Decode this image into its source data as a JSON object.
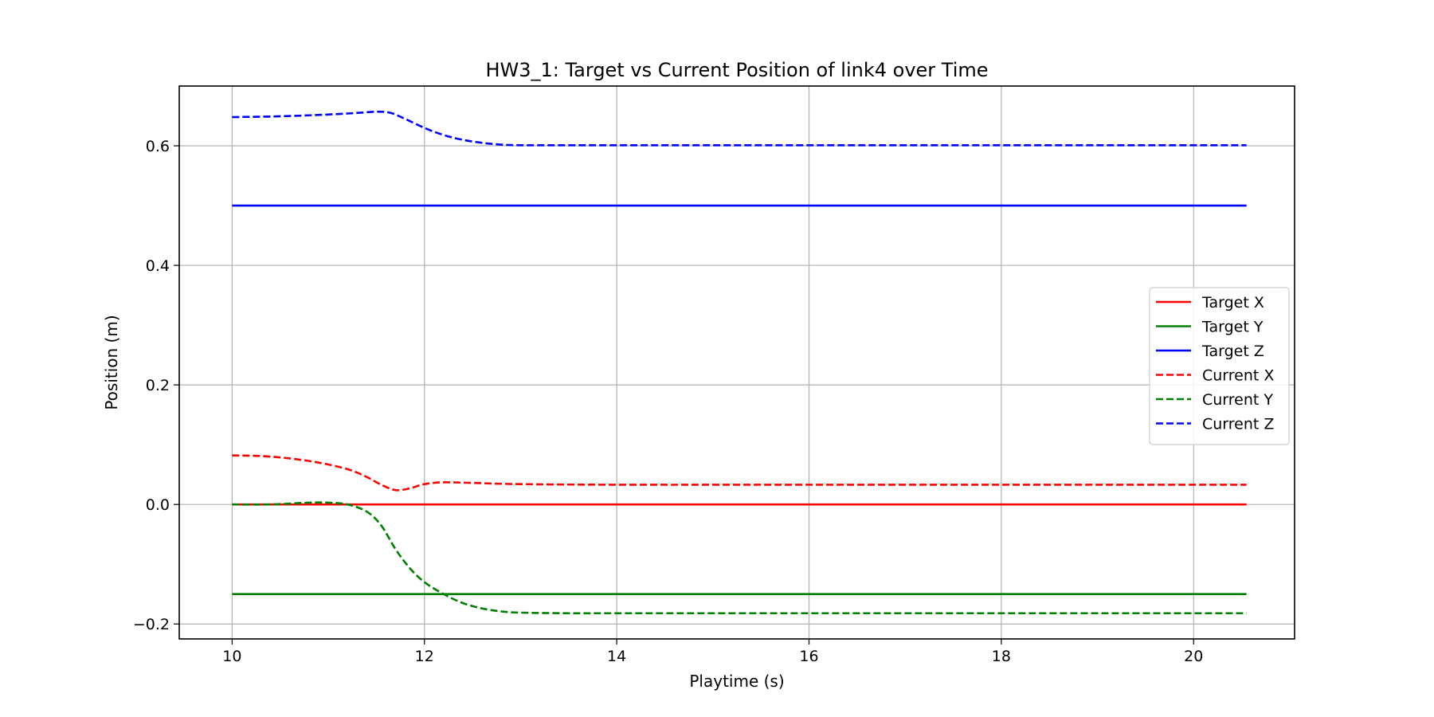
{
  "chart_data": {
    "type": "line",
    "title": "HW3_1: Target vs Current Position of link4 over Time",
    "xlabel": "Playtime (s)",
    "ylabel": "Position (m)",
    "xlim": [
      9.45,
      21.05
    ],
    "ylim": [
      -0.225,
      0.7
    ],
    "xticks": [
      10,
      12,
      14,
      16,
      18,
      20
    ],
    "xtick_labels": [
      "10",
      "12",
      "14",
      "16",
      "18",
      "20"
    ],
    "yticks": [
      -0.2,
      0.0,
      0.2,
      0.4,
      0.6
    ],
    "ytick_labels": [
      "−0.2",
      "0.0",
      "0.2",
      "0.4",
      "0.6"
    ],
    "grid": true,
    "legend_position": "center-right",
    "series": [
      {
        "name": "Target X",
        "color": "#ff0000",
        "dash": "solid",
        "x": [
          10.0,
          20.55
        ],
        "y": [
          0.0,
          0.0
        ]
      },
      {
        "name": "Target Y",
        "color": "#008000",
        "dash": "solid",
        "x": [
          10.0,
          20.55
        ],
        "y": [
          -0.15,
          -0.15
        ]
      },
      {
        "name": "Target Z",
        "color": "#0000ff",
        "dash": "solid",
        "x": [
          10.0,
          20.55
        ],
        "y": [
          0.5,
          0.5
        ]
      },
      {
        "name": "Current X",
        "color": "#ff0000",
        "dash": "dashed",
        "x": [
          10.0,
          10.3,
          10.6,
          10.9,
          11.2,
          11.4,
          11.55,
          11.7,
          11.85,
          12.0,
          12.2,
          12.5,
          13.0,
          14.0,
          16.0,
          18.0,
          20.0,
          20.55
        ],
        "y": [
          0.082,
          0.081,
          0.077,
          0.07,
          0.059,
          0.046,
          0.033,
          0.024,
          0.027,
          0.034,
          0.037,
          0.036,
          0.034,
          0.033,
          0.033,
          0.033,
          0.033,
          0.033
        ]
      },
      {
        "name": "Current Y",
        "color": "#008000",
        "dash": "dashed",
        "x": [
          10.0,
          10.4,
          10.8,
          11.0,
          11.2,
          11.4,
          11.55,
          11.7,
          11.85,
          12.0,
          12.2,
          12.4,
          12.6,
          12.8,
          13.0,
          13.5,
          14.0,
          16.0,
          18.0,
          20.0,
          20.55
        ],
        "y": [
          0.0,
          0.0,
          0.003,
          0.003,
          0.0,
          -0.012,
          -0.035,
          -0.075,
          -0.107,
          -0.13,
          -0.15,
          -0.165,
          -0.174,
          -0.179,
          -0.181,
          -0.182,
          -0.182,
          -0.182,
          -0.182,
          -0.182,
          -0.182
        ]
      },
      {
        "name": "Current Z",
        "color": "#0000ff",
        "dash": "dashed",
        "x": [
          10.0,
          10.4,
          10.8,
          11.2,
          11.5,
          11.65,
          11.8,
          12.0,
          12.2,
          12.4,
          12.6,
          12.8,
          13.0,
          13.5,
          14.0,
          16.0,
          18.0,
          20.0,
          20.55
        ],
        "y": [
          0.648,
          0.649,
          0.651,
          0.654,
          0.657,
          0.655,
          0.645,
          0.63,
          0.618,
          0.61,
          0.605,
          0.602,
          0.601,
          0.601,
          0.601,
          0.601,
          0.601,
          0.601,
          0.601
        ]
      }
    ]
  }
}
